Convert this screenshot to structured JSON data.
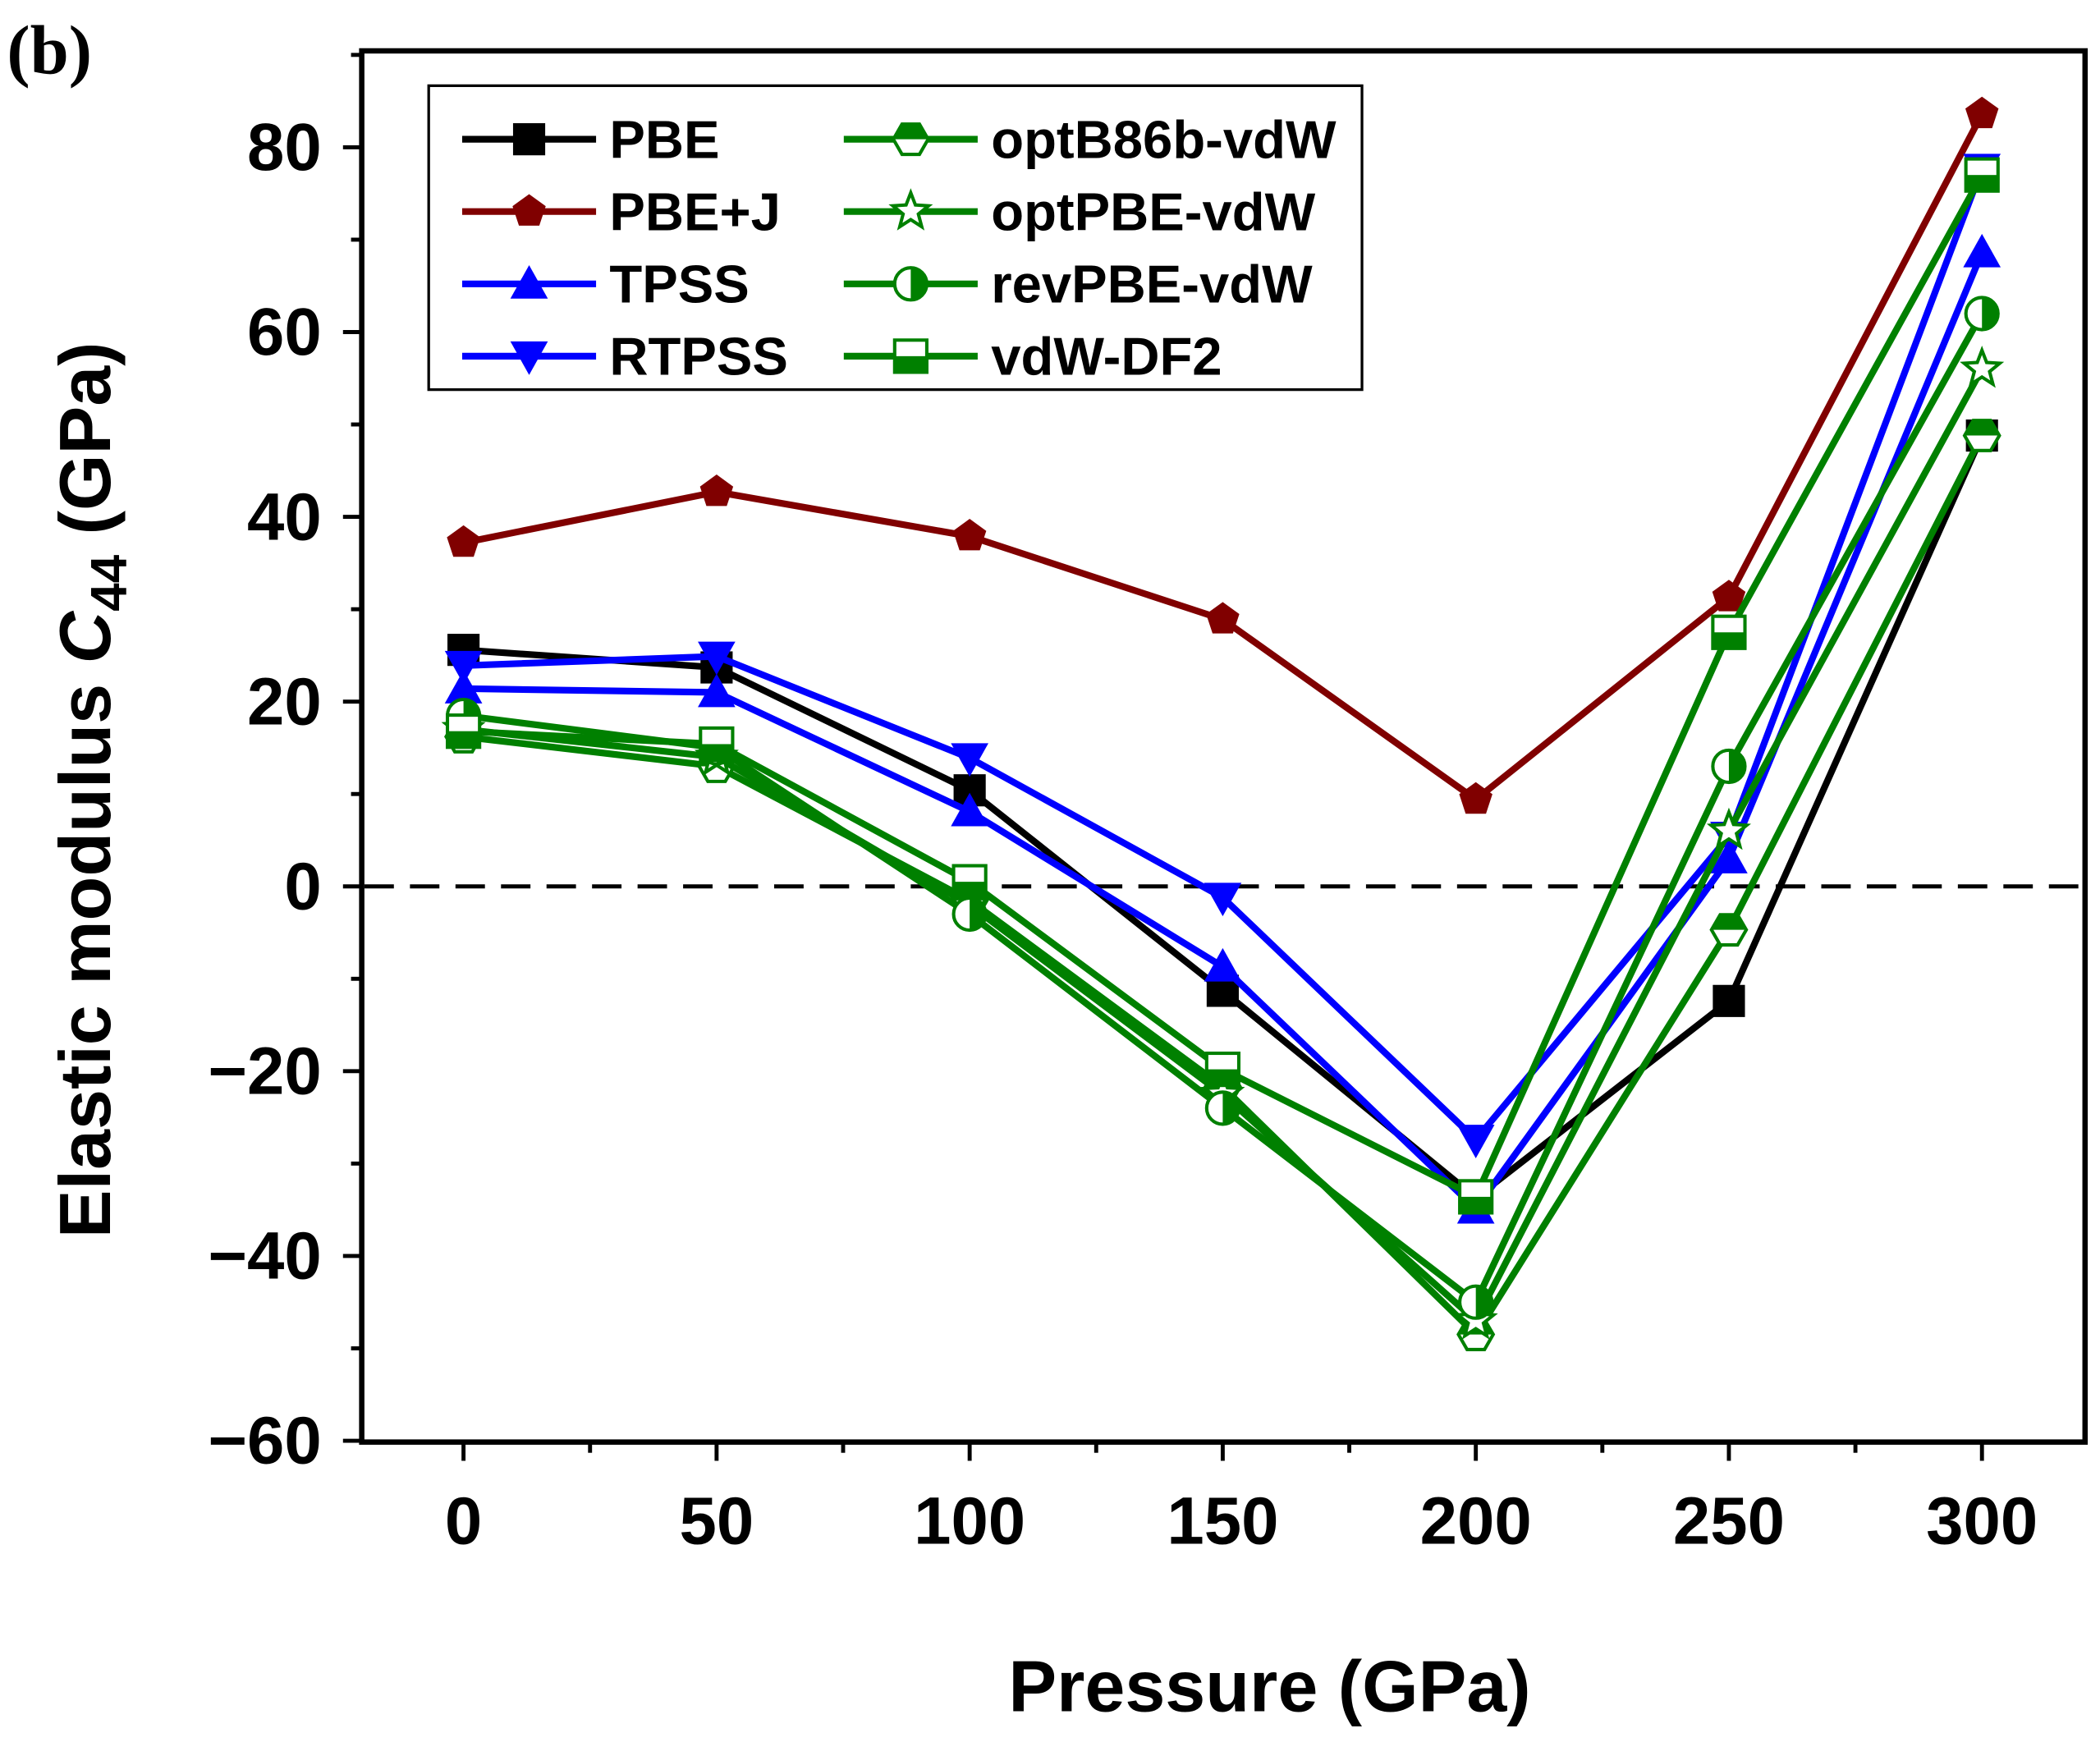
{
  "panel_label": "(b)",
  "chart_data": {
    "type": "line",
    "title": "",
    "xlabel": "Pressure (GPa)",
    "ylabel": {
      "prefix": "Elastic modulus ",
      "symbol": "C",
      "subscript": "44",
      "suffix": " (GPa)"
    },
    "x": [
      0,
      50,
      100,
      150,
      200,
      250,
      300
    ],
    "xlim": [
      -20,
      320
    ],
    "ylim": [
      -60,
      90
    ],
    "xticks": [
      0,
      50,
      100,
      150,
      200,
      250,
      300
    ],
    "yticks": [
      -60,
      -40,
      -20,
      0,
      20,
      40,
      60,
      80
    ],
    "xtick_labels": [
      "0",
      "50",
      "100",
      "150",
      "200",
      "250",
      "300"
    ],
    "ytick_labels": [
      "−60",
      "−40",
      "−20",
      "0",
      "20",
      "40",
      "60",
      "80"
    ],
    "reference_line": {
      "y": 0,
      "style": "dashed"
    },
    "legend_position": "top-left",
    "series": [
      {
        "name": "PBE",
        "color": "#000000",
        "marker": "square",
        "values": [
          25.6,
          23.7,
          10.4,
          -11.3,
          -33.7,
          -12.4,
          48.8
        ]
      },
      {
        "name": "PBE+J",
        "color": "#800000",
        "marker": "pentagon",
        "values": [
          37.2,
          42.7,
          37.9,
          28.9,
          9.4,
          31.3,
          83.6
        ]
      },
      {
        "name": "TPSS",
        "color": "#0000ff",
        "marker": "triangle-up",
        "values": [
          21.4,
          21.0,
          8.1,
          -8.7,
          -34.9,
          3.0,
          68.6
        ]
      },
      {
        "name": "RTPSS",
        "color": "#0000ff",
        "marker": "triangle-down",
        "values": [
          23.9,
          24.9,
          13.9,
          -1.2,
          -27.4,
          5.4,
          77.7
        ]
      },
      {
        "name": "optB86b-vdW",
        "color": "#008000",
        "marker": "half-hexagon",
        "values": [
          16.2,
          13.0,
          -1.5,
          -21.7,
          -48.5,
          -4.7,
          48.8
        ]
      },
      {
        "name": "optPBE-vdW",
        "color": "#008000",
        "marker": "star",
        "values": [
          17.0,
          14.0,
          -2.0,
          -22.5,
          -47.0,
          6.0,
          56.0
        ]
      },
      {
        "name": "revPBE-vdW",
        "color": "#008000",
        "marker": "half-circle",
        "values": [
          18.5,
          15.0,
          -3.0,
          -24.0,
          -45.0,
          13.0,
          62.0
        ]
      },
      {
        "name": "vdW-DF2",
        "color": "#008000",
        "marker": "half-square",
        "values": [
          16.8,
          15.4,
          0.5,
          -19.8,
          -33.6,
          27.5,
          77.0
        ]
      }
    ]
  }
}
